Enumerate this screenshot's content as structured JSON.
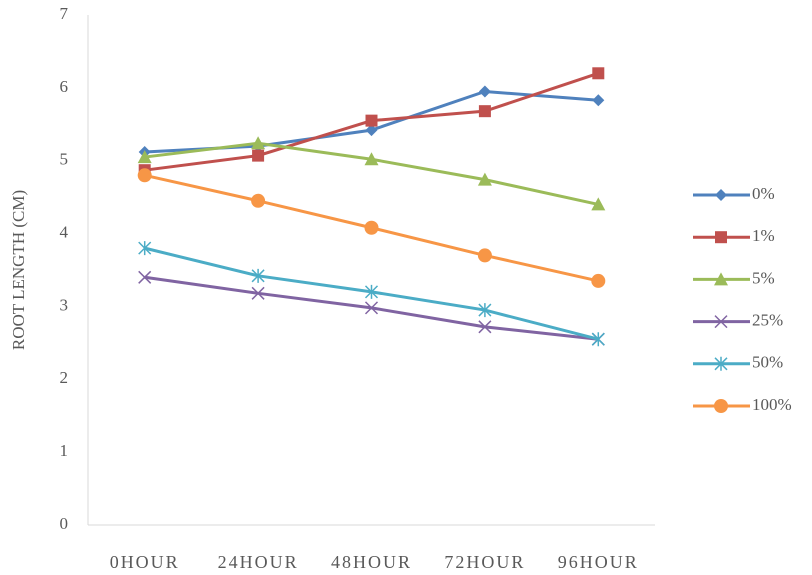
{
  "chart_data": {
    "type": "line",
    "y_label": "ROOT LENGTH (CM)",
    "categories": [
      "0HOUR",
      "24HOUR",
      "48HOUR",
      "72HOUR",
      "96HOUR"
    ],
    "series": [
      {
        "name": "0%",
        "color": "#4f81bd",
        "marker": "diamond",
        "values": [
          5.12,
          5.2,
          5.42,
          5.95,
          5.83
        ]
      },
      {
        "name": "1%",
        "color": "#c0504d",
        "marker": "square",
        "values": [
          4.87,
          5.07,
          5.55,
          5.68,
          6.2
        ]
      },
      {
        "name": "5%",
        "color": "#9bbb59",
        "marker": "triangle",
        "values": [
          5.05,
          5.24,
          5.02,
          4.74,
          4.4
        ]
      },
      {
        "name": "25%",
        "color": "#8064a2",
        "marker": "x",
        "values": [
          3.4,
          3.18,
          2.98,
          2.72,
          2.55
        ]
      },
      {
        "name": "50%",
        "color": "#4bacc6",
        "marker": "asterisk",
        "values": [
          3.8,
          3.42,
          3.2,
          2.95,
          2.55
        ]
      },
      {
        "name": "100%",
        "color": "#f79646",
        "marker": "circle",
        "values": [
          4.8,
          4.45,
          4.08,
          3.7,
          3.35
        ]
      }
    ],
    "ylim": [
      0,
      7
    ],
    "yticks": [
      0,
      1,
      2,
      3,
      4,
      5,
      6,
      7
    ],
    "grid": false,
    "legend": "right"
  }
}
